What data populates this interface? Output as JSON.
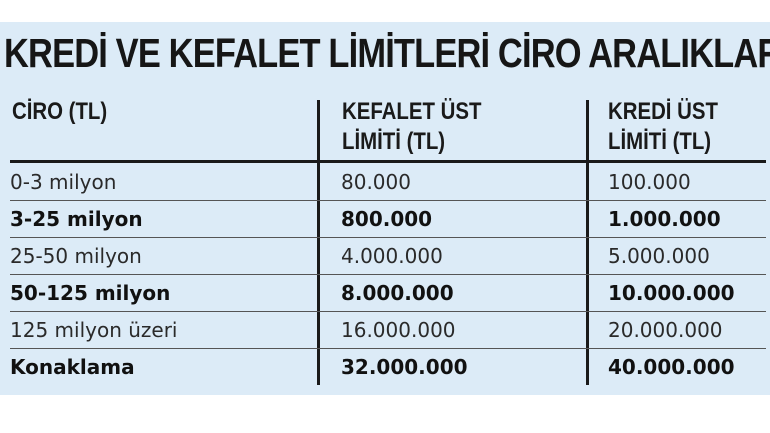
{
  "title": "KREDİ VE KEFALET LİMİTLERİ CİRO ARALIKLARI",
  "headers": {
    "col1": "CİRO (TL)",
    "col2_line1": "KEFALET ÜST",
    "col2_line2": "LİMİTİ (TL)",
    "col3_line1": "KREDİ ÜST",
    "col3_line2": "LİMİTİ (TL)"
  },
  "rows": [
    {
      "ciro": "0-3 milyon",
      "kefalet": "80.000",
      "kredi": "100.000",
      "bold": false
    },
    {
      "ciro": "3-25 milyon",
      "kefalet": "800.000",
      "kredi": "1.000.000",
      "bold": true
    },
    {
      "ciro": "25-50 milyon",
      "kefalet": "4.000.000",
      "kredi": "5.000.000",
      "bold": false
    },
    {
      "ciro": "50-125 milyon",
      "kefalet": "8.000.000",
      "kredi": "10.000.000",
      "bold": true
    },
    {
      "ciro": "125 milyon üzeri",
      "kefalet": "16.000.000",
      "kredi": "20.000.000",
      "bold": false
    },
    {
      "ciro": "Konaklama",
      "kefalet": "32.000.000",
      "kredi": "40.000.000",
      "bold": true
    }
  ]
}
